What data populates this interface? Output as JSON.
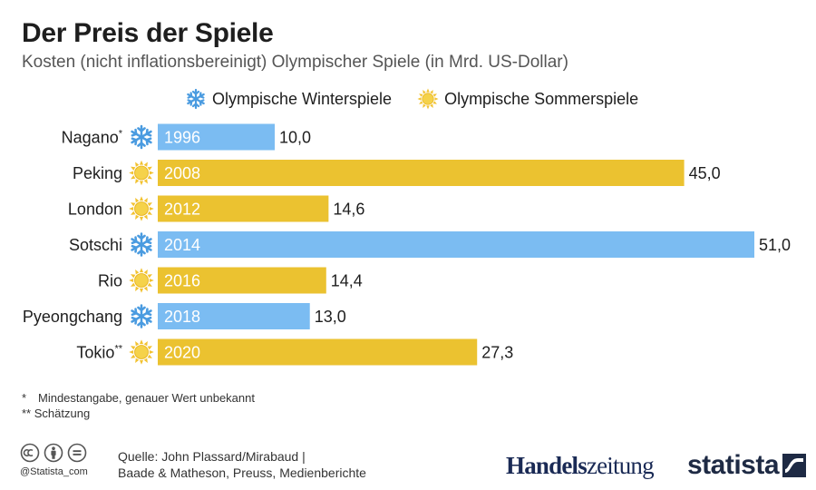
{
  "header": {
    "title": "Der Preis der Spiele",
    "subtitle": "Kosten (nicht inflationsbereinigt) Olympischer Spiele (in Mrd. US-Dollar)"
  },
  "legend": {
    "winter_label": "Olympische Winterspiele",
    "summer_label": "Olympische Sommerspiele"
  },
  "colors": {
    "winter": "#7bbcf2",
    "summer": "#ebc230",
    "text": "#1e1e1e",
    "year_text": "#ffffff",
    "snow_icon": "#4a9be0",
    "sun_icon": "#f2c230"
  },
  "chart_data": {
    "type": "bar",
    "orientation": "horizontal",
    "title": "Der Preis der Spiele",
    "subtitle": "Kosten (nicht inflationsbereinigt) Olympischer Spiele (in Mrd. US-Dollar)",
    "xlabel": "",
    "ylabel": "",
    "xlim": [
      0,
      51
    ],
    "grid": false,
    "legend_position": "top",
    "series_names": [
      "Olympische Winterspiele",
      "Olympische Sommerspiele"
    ],
    "bars": [
      {
        "city": "Nagano",
        "mark": "*",
        "year": "1996",
        "season": "winter",
        "value": 10.0,
        "value_label": "10,0"
      },
      {
        "city": "Peking",
        "mark": "",
        "year": "2008",
        "season": "summer",
        "value": 45.0,
        "value_label": "45,0"
      },
      {
        "city": "London",
        "mark": "",
        "year": "2012",
        "season": "summer",
        "value": 14.6,
        "value_label": "14,6"
      },
      {
        "city": "Sotschi",
        "mark": "",
        "year": "2014",
        "season": "winter",
        "value": 51.0,
        "value_label": "51,0"
      },
      {
        "city": "Rio",
        "mark": "",
        "year": "2016",
        "season": "summer",
        "value": 14.4,
        "value_label": "14,4"
      },
      {
        "city": "Pyeongchang",
        "mark": "",
        "year": "2018",
        "season": "winter",
        "value": 13.0,
        "value_label": "13,0"
      },
      {
        "city": "Tokio",
        "mark": "**",
        "year": "2020",
        "season": "summer",
        "value": 27.3,
        "value_label": "27,3"
      }
    ]
  },
  "footnotes": {
    "star_1": "*",
    "note_1": "Mindestangabe, genauer Wert unbekannt",
    "star_2": "**",
    "note_2": "Schätzung"
  },
  "footer": {
    "handle": "@Statista_com",
    "source_line_1": "Quelle: John Plassard/Mirabaud |",
    "source_line_2": "Baade & Matheson, Preuss, Medienberichte",
    "brand_part_1": "Handels",
    "brand_part_2": "zeitung",
    "statista_word": "statista",
    "icons": [
      "cc-icon",
      "by-icon",
      "nd-icon"
    ]
  }
}
